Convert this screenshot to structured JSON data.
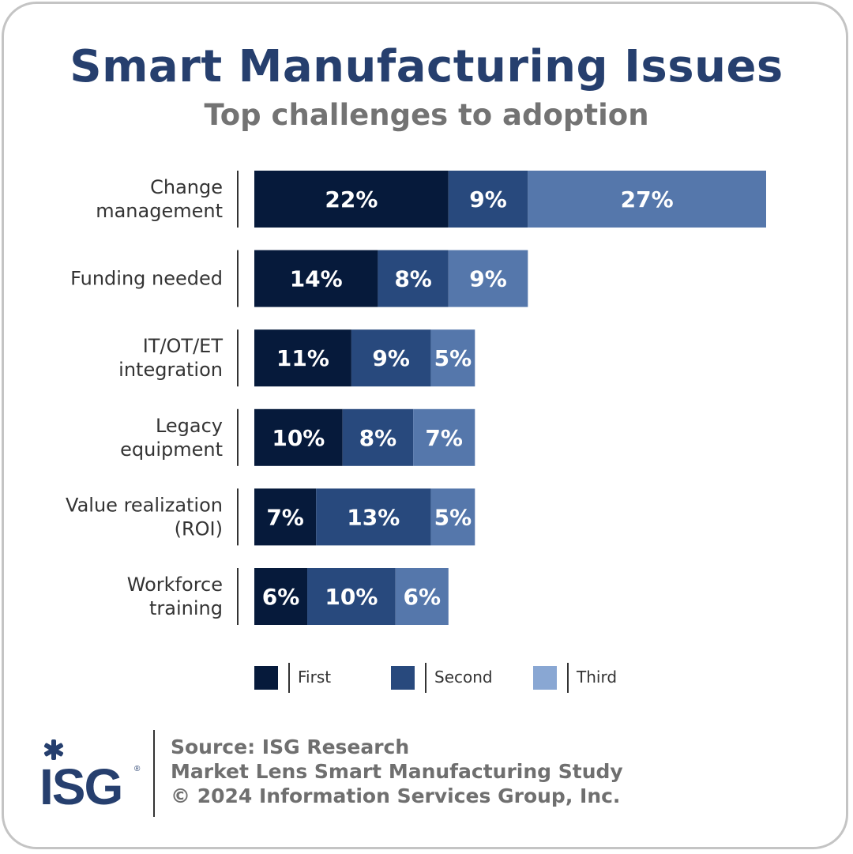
{
  "title": "Smart Manufacturing Issues",
  "subtitle": "Top challenges to adoption",
  "colors": {
    "first": "#061a3b",
    "second": "#28497d",
    "third": "#5577ab",
    "legend_third": "#89a7d3",
    "title": "#263f6e"
  },
  "chart_data": {
    "type": "bar",
    "orientation": "horizontal",
    "stacked": true,
    "categories": [
      [
        "Change",
        "management"
      ],
      [
        "Funding needed"
      ],
      [
        "IT/OT/ET",
        "integration"
      ],
      [
        "Legacy",
        "equipment"
      ],
      [
        "Value realization",
        "(ROI)"
      ],
      [
        "Workforce",
        "training"
      ]
    ],
    "series": [
      {
        "name": "First",
        "values": [
          22,
          14,
          11,
          10,
          7,
          6
        ]
      },
      {
        "name": "Second",
        "values": [
          9,
          8,
          9,
          8,
          13,
          10
        ]
      },
      {
        "name": "Third",
        "values": [
          27,
          9,
          5,
          7,
          5,
          6
        ]
      }
    ],
    "value_labels": [
      [
        "22%",
        "9%",
        "27%"
      ],
      [
        "14%",
        "8%",
        "9%"
      ],
      [
        "11%",
        "9%",
        "5%"
      ],
      [
        "10%",
        "8%",
        "7%"
      ],
      [
        "7%",
        "13%",
        "5%"
      ],
      [
        "6%",
        "10%",
        "6%"
      ]
    ],
    "xlim": [
      0,
      58
    ],
    "legend_position": "bottom"
  },
  "source": {
    "line1": "Source: ISG Research",
    "line2": "Market Lens Smart Manufacturing Study",
    "line3": "© 2024 Information Services Group, Inc."
  },
  "logo": {
    "text": "ISG",
    "icon": "isg-asterisk-logo"
  }
}
